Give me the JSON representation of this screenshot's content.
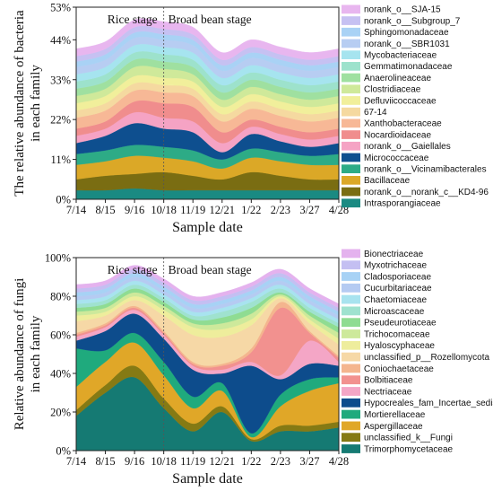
{
  "chart_data": [
    {
      "type": "area",
      "title": "",
      "xlabel": "Sample date",
      "ylabel": "The relative abundance of bacteria in each family",
      "ylabel_lines": [
        "The relative abundance of bacteria",
        "in each family"
      ],
      "y_ticks": [
        "0%",
        "11%",
        "22%",
        "33%",
        "44%",
        "53%"
      ],
      "y_tick_values": [
        0,
        11,
        22,
        33,
        44,
        53
      ],
      "ylim": [
        0,
        53
      ],
      "x": [
        "7/14",
        "8/15",
        "9/16",
        "10/18",
        "11/19",
        "12/21",
        "1/22",
        "2/23",
        "3/27",
        "4/28"
      ],
      "stage_labels": [
        "Rice stage",
        "Broad bean stage"
      ],
      "legend_position": "right",
      "series": [
        {
          "name": "Intrasporangiaceae",
          "color": "#1a8a82",
          "values": [
            2.5,
            2.5,
            3,
            2.5,
            2.5,
            2.5,
            2.5,
            2.5,
            2.5,
            2.5
          ]
        },
        {
          "name": "norank_o__norank_c__KD4-96",
          "color": "#7a6d12",
          "values": [
            3,
            4,
            4,
            5,
            4,
            3,
            5,
            4,
            3,
            3
          ]
        },
        {
          "name": "Bacillaceae",
          "color": "#dba827",
          "values": [
            4,
            4,
            5,
            4,
            4,
            3,
            4,
            4,
            4,
            4
          ]
        },
        {
          "name": "norank_o__Vicinamibacterales",
          "color": "#2dab86",
          "values": [
            3,
            3,
            3,
            3,
            3,
            2.5,
            2.5,
            2.5,
            2.5,
            3
          ]
        },
        {
          "name": "Micrococcaceae",
          "color": "#0e4f8f",
          "values": [
            3,
            4,
            6,
            5,
            5,
            2,
            4,
            3,
            2.5,
            3
          ]
        },
        {
          "name": "norank_o__Gaiellales",
          "color": "#f5a3c4",
          "values": [
            2,
            2,
            3,
            3,
            3,
            2.5,
            2,
            2,
            2,
            2
          ]
        },
        {
          "name": "Nocardioidaceae",
          "color": "#f08d8d",
          "values": [
            2,
            2,
            3,
            4,
            4,
            3,
            2,
            2,
            2,
            2
          ]
        },
        {
          "name": "Xanthobacteraceae",
          "color": "#f7b896",
          "values": [
            3,
            3,
            3,
            3,
            3,
            3,
            3,
            3,
            3,
            3
          ]
        },
        {
          "name": "67-14",
          "color": "#f5d9a0",
          "values": [
            2,
            2,
            2,
            2,
            2,
            2,
            2,
            2,
            2,
            2
          ]
        },
        {
          "name": "Defluviicoccaceae",
          "color": "#f1ef9b",
          "values": [
            2,
            2,
            2,
            2,
            2,
            2,
            2,
            2,
            2,
            2
          ]
        },
        {
          "name": "Clostridiaceae",
          "color": "#cfe99a",
          "values": [
            2,
            2,
            2.5,
            2.5,
            2,
            2,
            2,
            2,
            2,
            2
          ]
        },
        {
          "name": "Anaerolineaceae",
          "color": "#9fe0a0",
          "values": [
            2,
            2,
            2,
            2,
            2,
            2,
            2,
            2,
            2,
            2
          ]
        },
        {
          "name": "Gemmatimonadaceae",
          "color": "#9de2cc",
          "values": [
            2,
            2,
            2,
            2,
            2,
            2,
            2,
            2,
            2,
            2
          ]
        },
        {
          "name": "Mycobacteriaceae",
          "color": "#a6e4ef",
          "values": [
            2,
            2,
            2,
            2,
            2,
            2,
            2,
            2,
            2,
            2
          ]
        },
        {
          "name": "norank_o__SBR1031",
          "color": "#b7cdf2",
          "values": [
            2,
            2,
            2,
            2,
            2,
            2,
            2,
            2,
            2,
            2
          ]
        },
        {
          "name": "Sphingomonadaceae",
          "color": "#a9d2f5",
          "values": [
            1.5,
            1.5,
            1.5,
            1.5,
            1.5,
            1.5,
            1.5,
            1.5,
            1.5,
            1.5
          ]
        },
        {
          "name": "norank_o__Subgroup_7",
          "color": "#c6c1f2",
          "values": [
            1.5,
            1.5,
            1.5,
            1.5,
            1.5,
            1.5,
            1.5,
            1.5,
            1.5,
            1.5
          ]
        },
        {
          "name": "norank_o__SJA-15",
          "color": "#e8b6ef",
          "values": [
            2,
            2,
            2,
            2,
            2,
            2,
            2,
            2,
            2,
            2
          ]
        }
      ]
    },
    {
      "type": "area",
      "title": "",
      "xlabel": "Sample date",
      "ylabel": "Relative abundance of fungi in each family",
      "ylabel_lines": [
        "Relative abundance of fungi",
        "in each family"
      ],
      "y_ticks": [
        "0%",
        "20%",
        "40%",
        "60%",
        "80%",
        "100%"
      ],
      "y_tick_values": [
        0,
        20,
        40,
        60,
        80,
        100
      ],
      "ylim": [
        0,
        100
      ],
      "x": [
        "7/14",
        "8/15",
        "9/16",
        "10/18",
        "11/19",
        "12/21",
        "1/22",
        "2/23",
        "3/27",
        "4/28"
      ],
      "stage_labels": [
        "Rice stage",
        "Broad bean stage"
      ],
      "legend_position": "right",
      "series": [
        {
          "name": "Trimorphomycetaceae",
          "color": "#157a73",
          "values": [
            18,
            30,
            38,
            22,
            10,
            20,
            5,
            10,
            10,
            12
          ]
        },
        {
          "name": "unclassified_k__Fungi",
          "color": "#857a14",
          "values": [
            3,
            4,
            6,
            5,
            4,
            3,
            1,
            3,
            3,
            3
          ]
        },
        {
          "name": "Aspergillaceae",
          "color": "#e0a728",
          "values": [
            12,
            12,
            12,
            12,
            8,
            8,
            1,
            10,
            18,
            20
          ]
        },
        {
          "name": "Mortierellaceae",
          "color": "#1faa7d",
          "values": [
            20,
            6,
            5,
            7,
            6,
            4,
            2,
            6,
            6,
            3
          ]
        },
        {
          "name": "Hypocreales_fam_Incertae_sedis",
          "color": "#0d4c8c",
          "values": [
            4,
            10,
            10,
            12,
            14,
            5,
            35,
            8,
            8,
            6
          ]
        },
        {
          "name": "Nectriaceae",
          "color": "#f4a6c6",
          "values": [
            2,
            2,
            2,
            2,
            2,
            2,
            2,
            2,
            12,
            2
          ]
        },
        {
          "name": "Bolbitiaceae",
          "color": "#f2918f",
          "values": [
            1,
            1,
            1,
            1,
            1,
            2,
            5,
            35,
            4,
            2
          ]
        },
        {
          "name": "Coniochaetaceae",
          "color": "#f4b58e",
          "values": [
            1,
            1,
            1,
            1,
            1,
            1,
            2,
            3,
            1,
            1
          ]
        },
        {
          "name": "unclassified_p__Rozellomycota",
          "color": "#f6d8a6",
          "values": [
            6,
            4,
            3,
            8,
            14,
            14,
            12,
            2,
            4,
            6
          ]
        },
        {
          "name": "Hyaloscyphaceae",
          "color": "#eeed9c",
          "values": [
            3,
            2,
            2,
            3,
            4,
            4,
            3,
            1,
            2,
            3
          ]
        },
        {
          "name": "Trichocomaceae",
          "color": "#cde99b",
          "values": [
            2,
            2,
            2,
            2,
            2,
            3,
            3,
            1,
            2,
            3
          ]
        },
        {
          "name": "Pseudeurotiaceae",
          "color": "#8fdc92",
          "values": [
            2,
            2,
            2,
            2,
            2,
            3,
            3,
            1,
            2,
            3
          ]
        },
        {
          "name": "Microascaceae",
          "color": "#9fe2cf",
          "values": [
            2,
            2,
            2,
            2,
            2,
            3,
            3,
            2,
            2,
            2
          ]
        },
        {
          "name": "Chaetomiaceae",
          "color": "#a8e3ef",
          "values": [
            2,
            2,
            2,
            2,
            2,
            2,
            2,
            2,
            2,
            2
          ]
        },
        {
          "name": "Cucurbitariaceae",
          "color": "#b5cbf2",
          "values": [
            2,
            2,
            2,
            2,
            2,
            2,
            2,
            2,
            2,
            2
          ]
        },
        {
          "name": "Cladosporiaceae",
          "color": "#a7d2f5",
          "values": [
            2,
            2,
            2,
            2,
            2,
            2,
            2,
            2,
            2,
            2
          ]
        },
        {
          "name": "Myxotrichaceae",
          "color": "#c4bff2",
          "values": [
            2,
            2,
            2,
            2,
            2,
            2,
            2,
            2,
            2,
            2
          ]
        },
        {
          "name": "Bionectriaceae",
          "color": "#e4b2ee",
          "values": [
            2,
            2,
            2,
            2,
            2,
            2,
            2,
            2,
            2,
            2
          ]
        }
      ]
    }
  ]
}
